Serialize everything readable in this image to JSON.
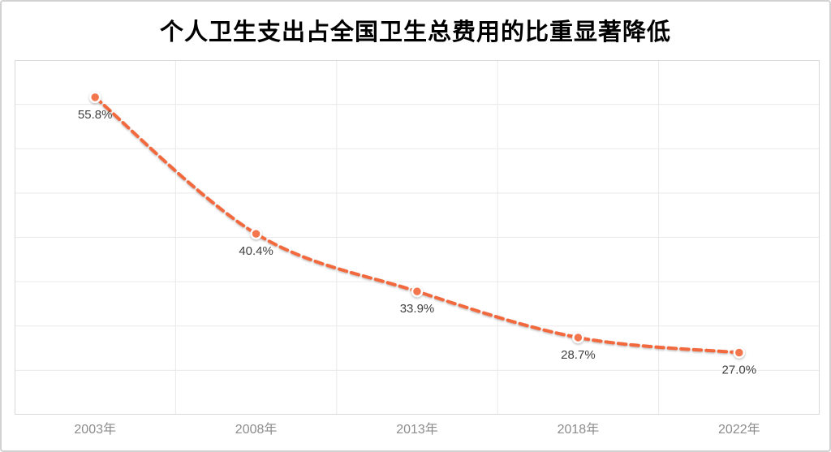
{
  "chart_data": {
    "type": "line",
    "title": "个人卫生支出占全国卫生总费用的比重显著降低",
    "categories": [
      "2003年",
      "2008年",
      "2013年",
      "2018年",
      "2022年"
    ],
    "values": [
      55.8,
      40.4,
      33.9,
      28.7,
      27.0
    ],
    "point_labels": [
      "55.8%",
      "40.4%",
      "33.9%",
      "28.7%",
      "27.0%"
    ],
    "xlabel": "",
    "ylabel": "",
    "ylim": [
      20,
      60
    ],
    "y_gridline_step": 5,
    "grid": "on",
    "y_axis_labels_visible": false,
    "legend": "none",
    "line_style": "dashed",
    "colors": {
      "line": "#f2693e",
      "marker_fill": "#f4764e",
      "marker_ring": "#ffffff",
      "point_label_text": "#404040",
      "axis_text": "#8c8c8c",
      "gridline": "#e9e9e9",
      "plot_border": "#d9d9d9",
      "frame_border": "#d2d2d2",
      "title_text": "#000000",
      "background": "#ffffff"
    }
  }
}
